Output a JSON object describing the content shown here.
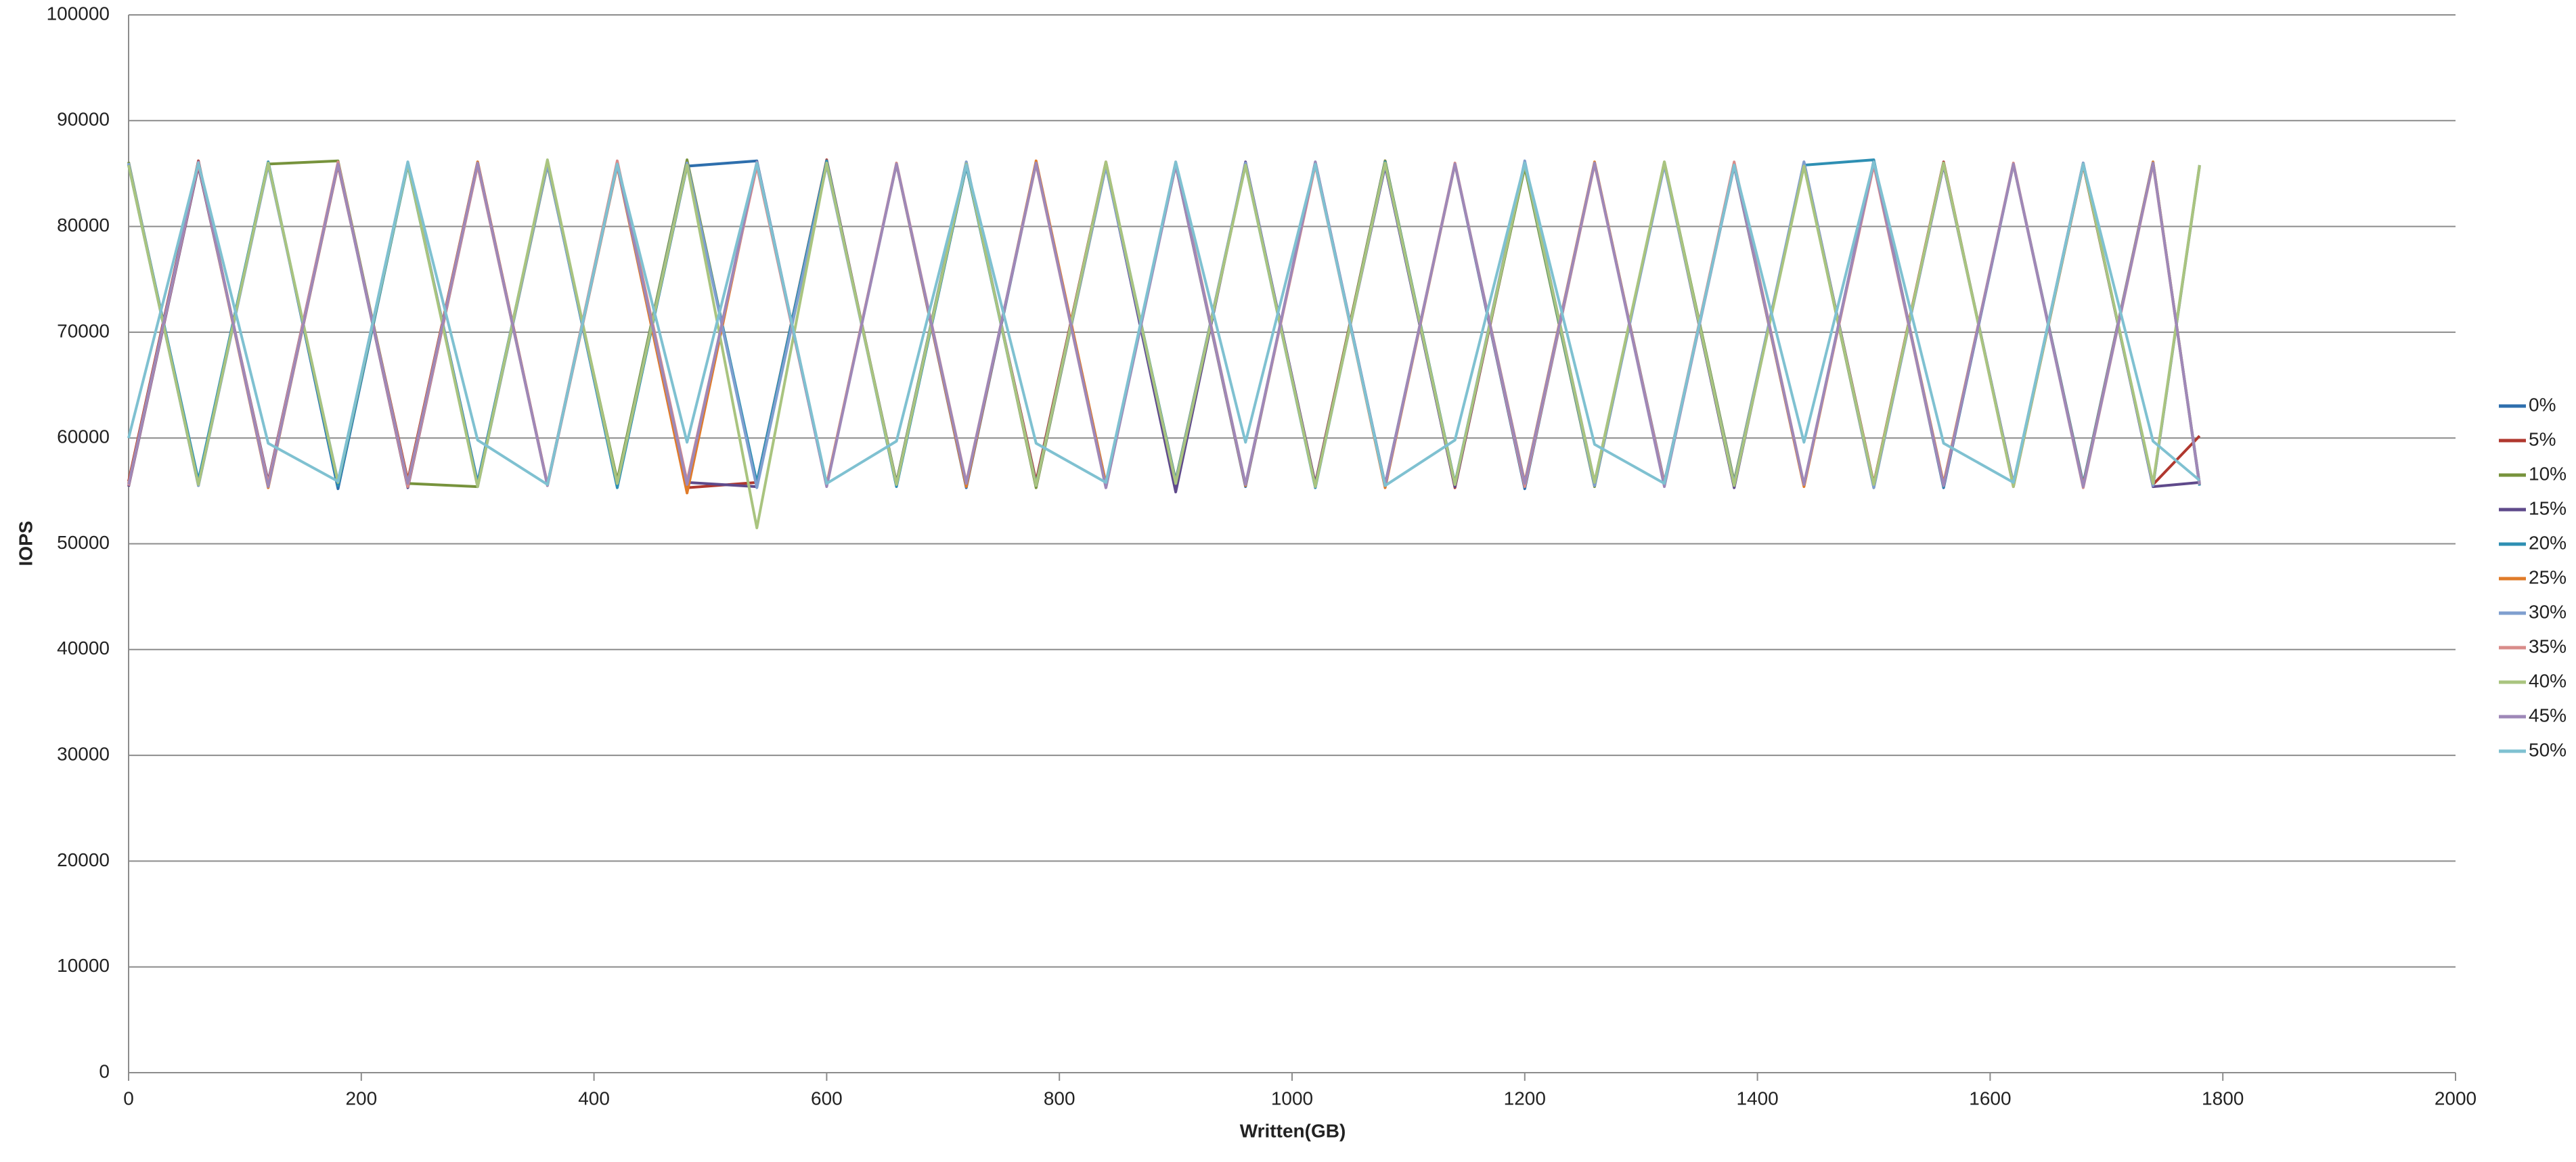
{
  "chart_data": {
    "type": "line",
    "x_label": "Written(GB)",
    "y_label": "IOPS",
    "xlim": [
      0,
      2000
    ],
    "xticks": [
      0,
      200,
      400,
      600,
      800,
      1000,
      1200,
      1400,
      1600,
      1800,
      2000
    ],
    "ylim": [
      0,
      100000
    ],
    "yticks": [
      0,
      10000,
      20000,
      30000,
      40000,
      50000,
      60000,
      70000,
      80000,
      90000,
      100000
    ],
    "grid": true,
    "legend": "right",
    "x": [
      0,
      60,
      120,
      180,
      240,
      300,
      360,
      420,
      480,
      540,
      600,
      660,
      720,
      780,
      840,
      900,
      960,
      1020,
      1080,
      1140,
      1200,
      1260,
      1320,
      1380,
      1440,
      1500,
      1560,
      1620,
      1680,
      1740,
      1780
    ],
    "series": [
      {
        "name": "0%",
        "color": "#2e6fad",
        "values": [
          85800,
          55600,
          86100,
          55200,
          85900,
          55800,
          86000,
          55400,
          85700,
          86200,
          55500,
          85900,
          55300,
          86000,
          55700,
          85800,
          55400,
          86100,
          55600,
          85900,
          55200,
          86000,
          55800,
          85700,
          55500,
          86200,
          55300,
          85900,
          55600,
          86000,
          55700
        ]
      },
      {
        "name": "5%",
        "color": "#b0382f",
        "values": [
          55900,
          86200,
          55400,
          85800,
          56000,
          86100,
          55600,
          85900,
          55300,
          55800,
          86300,
          55500,
          85700,
          55900,
          86100,
          55400,
          85900,
          55700,
          86200,
          55300,
          85800,
          55600,
          86000,
          55500,
          85900,
          55700,
          86100,
          55400,
          85800,
          55600,
          60200
        ]
      },
      {
        "name": "10%",
        "color": "#77933c",
        "values": [
          86100,
          55500,
          85900,
          86200,
          55700,
          55400,
          85800,
          56000,
          86300,
          55500,
          85900,
          55800,
          86100,
          55300,
          85700,
          56000,
          85900,
          55500,
          86200,
          55700,
          85600,
          55400,
          86100,
          55900,
          85800,
          55300,
          86000,
          55600,
          85900,
          55500,
          85700
        ]
      },
      {
        "name": "15%",
        "color": "#5f4a8b",
        "values": [
          55400,
          85700,
          55900,
          86000,
          55300,
          85800,
          55600,
          86100,
          55800,
          55400,
          85900,
          55700,
          86000,
          55500,
          85800,
          54900,
          86100,
          55600,
          85700,
          55400,
          86000,
          55800,
          85900,
          55300,
          86100,
          55500,
          85800,
          55700,
          86000,
          55400,
          55800
        ]
      },
      {
        "name": "20%",
        "color": "#2e8fb3",
        "values": [
          85900,
          56000,
          86100,
          55500,
          85800,
          55700,
          86000,
          55300,
          85900,
          55800,
          86200,
          55400,
          85700,
          55600,
          86000,
          55900,
          85800,
          55300,
          86100,
          55700,
          85900,
          55500,
          86000,
          55600,
          85800,
          86300,
          55400,
          85900,
          55700,
          86100,
          55500
        ]
      },
      {
        "name": "25%",
        "color": "#e07b29",
        "values": [
          55700,
          86000,
          55300,
          85900,
          55800,
          86100,
          55500,
          85700,
          54800,
          86000,
          55600,
          85900,
          55400,
          86200,
          55700,
          85800,
          55500,
          86000,
          55300,
          85900,
          55800,
          86100,
          55600,
          85800,
          55400,
          86000,
          55700,
          85900,
          55500,
          86100,
          55600
        ]
      },
      {
        "name": "30%",
        "color": "#7f9fcf",
        "values": [
          86000,
          55500,
          85800,
          55900,
          86100,
          55400,
          85900,
          55700,
          86000,
          55300,
          85800,
          55600,
          86100,
          55500,
          85700,
          55800,
          86000,
          55400,
          85900,
          55600,
          86200,
          55500,
          85800,
          55700,
          86100,
          55300,
          85900,
          55600,
          86000,
          55500,
          85800
        ]
      },
      {
        "name": "35%",
        "color": "#d98c8a",
        "values": [
          55500,
          85900,
          55700,
          86100,
          55400,
          85800,
          55600,
          86200,
          55900,
          85700,
          55500,
          86000,
          55800,
          85900,
          55300,
          86100,
          55600,
          85800,
          55500,
          86000,
          55400,
          85900,
          55700,
          86100,
          55600,
          85800,
          55500,
          86000,
          55300,
          85900,
          55600
        ]
      },
      {
        "name": "40%",
        "color": "#a9c47f",
        "values": [
          85800,
          55600,
          86000,
          55800,
          85900,
          55400,
          86300,
          55700,
          85800,
          51500,
          86000,
          55600,
          85900,
          55500,
          86100,
          55700,
          85800,
          55400,
          86000,
          55600,
          85900,
          55800,
          86100,
          55500,
          85700,
          55600,
          86000,
          55400,
          85900,
          55700,
          85800
        ]
      },
      {
        "name": "45%",
        "color": "#9e88b8",
        "values": [
          55600,
          86100,
          55400,
          85900,
          55700,
          86000,
          55500,
          85800,
          55600,
          86100,
          55400,
          85900,
          55700,
          86000,
          55300,
          85800,
          55600,
          86100,
          55500,
          85900,
          55700,
          86000,
          55400,
          85800,
          55600,
          86100,
          55500,
          85900,
          55400,
          86000,
          55600
        ]
      },
      {
        "name": "50%",
        "color": "#7fc1d1",
        "values": [
          60000,
          86000,
          59500,
          55900,
          86100,
          59800,
          55600,
          85900,
          59600,
          86000,
          55700,
          59700,
          85800,
          59500,
          55800,
          86100,
          59600,
          85900,
          55500,
          59800,
          86000,
          59400,
          55700,
          85800,
          59600,
          86100,
          59500,
          55800,
          85900,
          59700,
          56000
        ]
      }
    ]
  }
}
